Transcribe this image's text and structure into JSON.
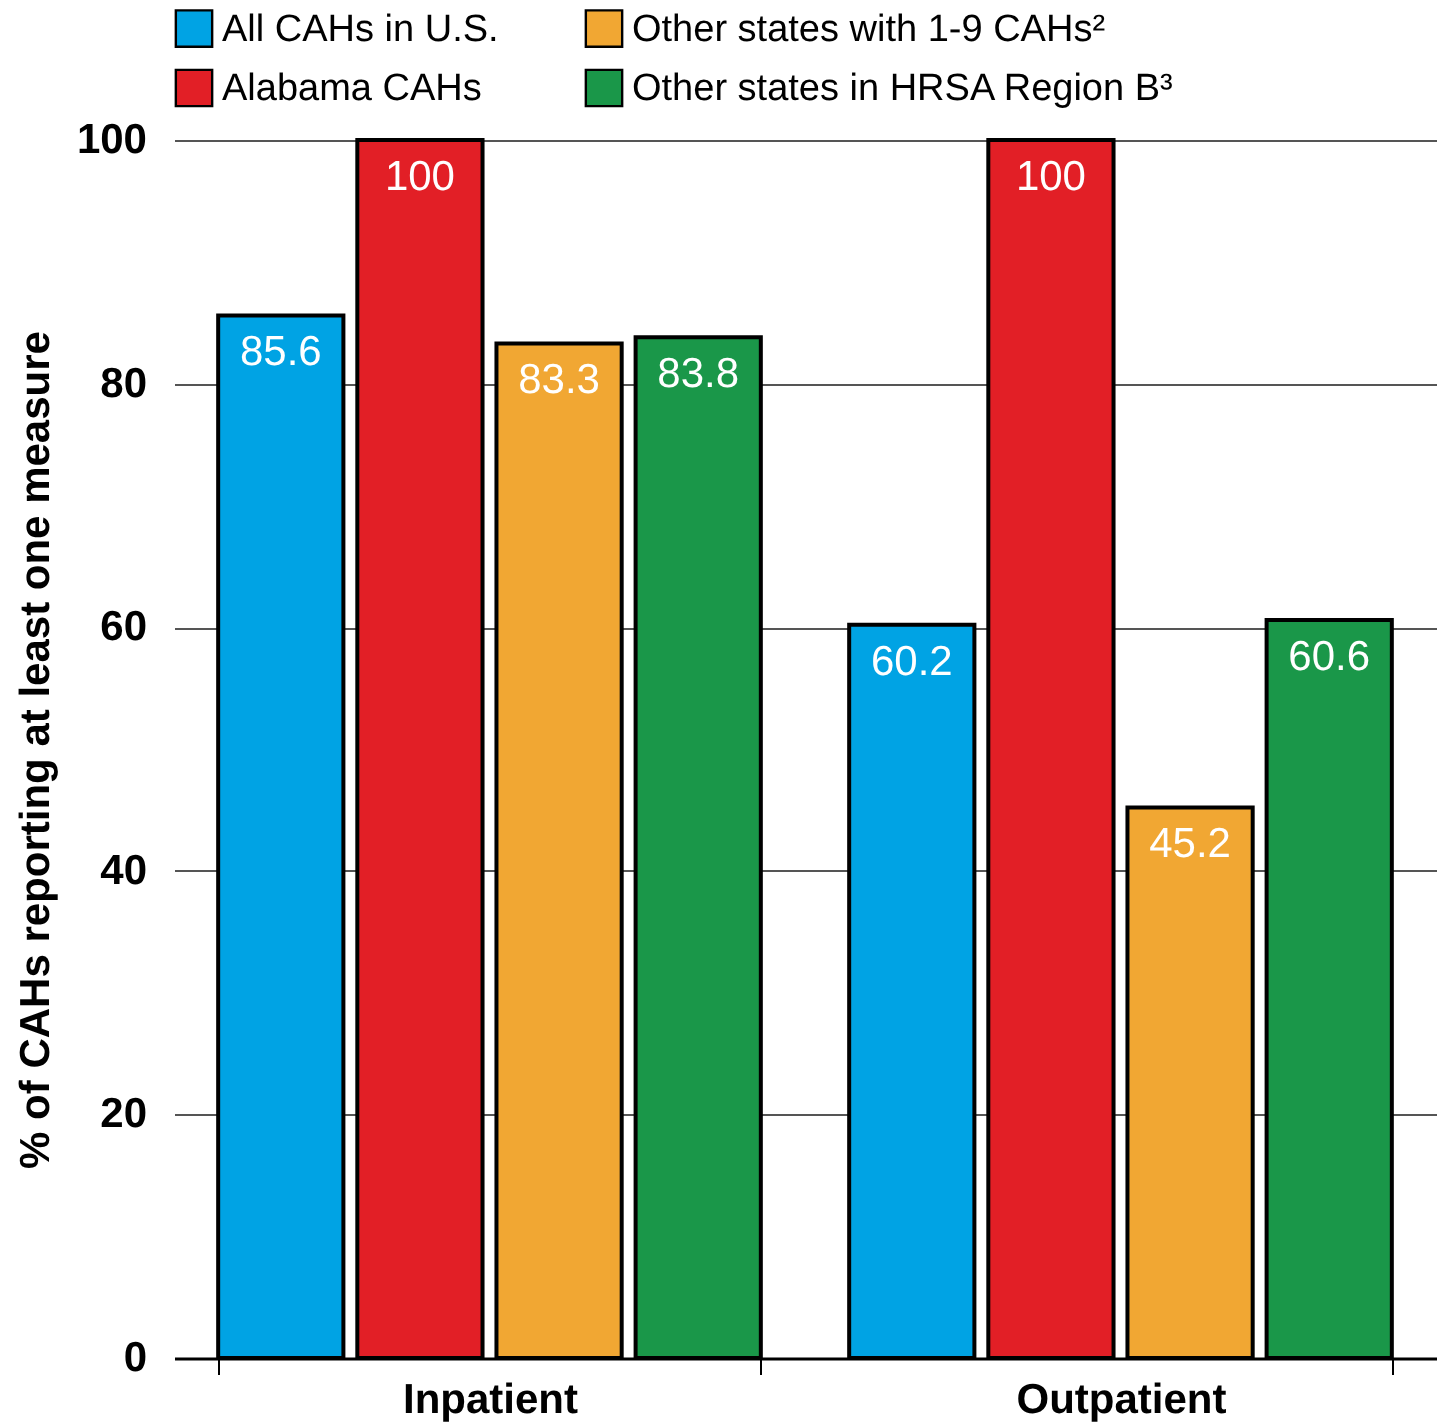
{
  "chart_data": {
    "type": "bar",
    "ylabel": "% of CAHs reporting at least one measure",
    "categories": [
      "Inpatient",
      "Outpatient"
    ],
    "series": [
      {
        "name": "All CAHs in U.S.",
        "color": "#00a3e4",
        "values": [
          85.6,
          60.2
        ]
      },
      {
        "name": "Alabama CAHs",
        "color": "#e21f26",
        "values": [
          100,
          100
        ]
      },
      {
        "name": "Other states with 1-9 CAHs²",
        "color": "#f1a733",
        "values": [
          83.3,
          45.2
        ]
      },
      {
        "name": "Other states in HRSA Region B³",
        "color": "#1a9749",
        "values": [
          83.8,
          60.6
        ]
      }
    ],
    "ylim": [
      0,
      100
    ],
    "yticks": [
      0,
      20,
      40,
      60,
      80,
      100
    ],
    "grid": "y",
    "legend": "top",
    "data_labels": true
  }
}
